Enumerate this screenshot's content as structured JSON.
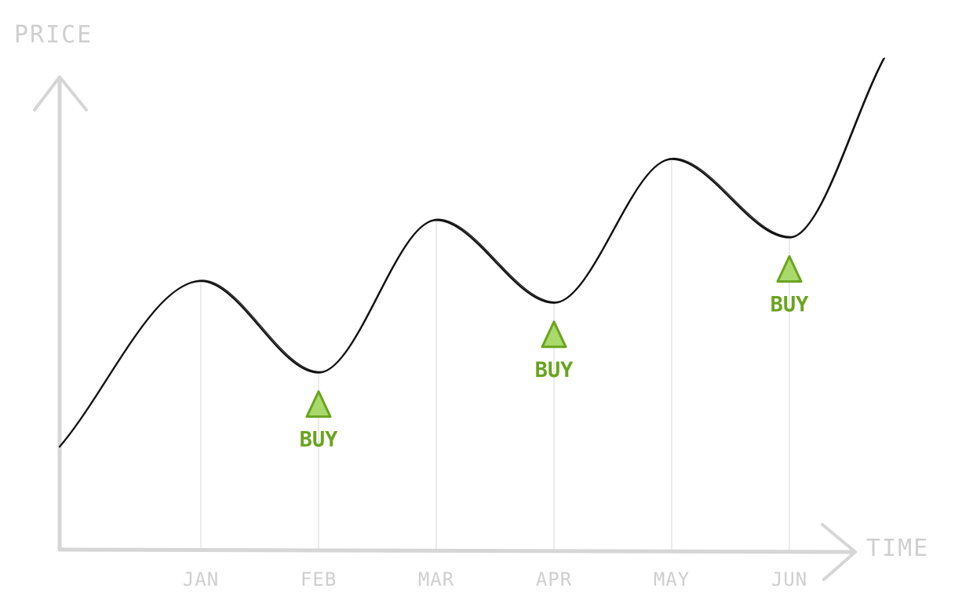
{
  "colors": {
    "axis": "#d6d6d6",
    "gridline": "#ebebeb",
    "price_line": "#111111",
    "buy": "#6aa41f",
    "buy_fill": "#a9d96a"
  },
  "chart_data": {
    "type": "line",
    "title": "",
    "xlabel": "TIME",
    "ylabel": "PRICE",
    "categories": [
      "JAN",
      "FEB",
      "MAR",
      "APR",
      "MAY",
      "JUN"
    ],
    "ylim": [
      0,
      100
    ],
    "grid": "vertical",
    "series": [
      {
        "x": [
          -1.2,
          0,
          1,
          2,
          3,
          4,
          5,
          5.8
        ],
        "y": [
          11,
          49,
          28,
          63,
          44,
          77,
          59,
          100
        ]
      }
    ],
    "annotations": [
      {
        "x": 1,
        "label": "BUY",
        "marker": "up-triangle"
      },
      {
        "x": 3,
        "label": "BUY",
        "marker": "up-triangle"
      },
      {
        "x": 5,
        "label": "BUY",
        "marker": "up-triangle"
      }
    ]
  }
}
